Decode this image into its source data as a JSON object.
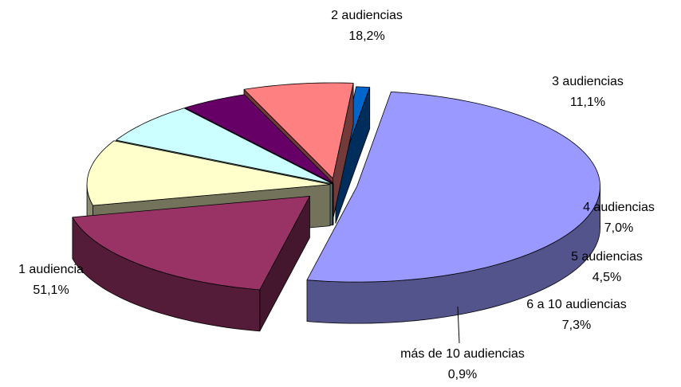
{
  "chart_data": {
    "type": "pie",
    "style": "3d-exploded",
    "title": "",
    "legend": "none",
    "categories": [
      "1 audiencia",
      "2 audiencias",
      "3 audiencias",
      "4 audiencias",
      "5 audiencias",
      "6 a 10 audiencias",
      "más de 10 audiencias"
    ],
    "values": [
      51.1,
      18.2,
      11.1,
      7.0,
      4.5,
      7.3,
      0.9
    ],
    "value_labels": [
      "51,1%",
      "18,2%",
      "11,1%",
      "7,0%",
      "4,5%",
      "7,3%",
      "0,9%"
    ],
    "colors": [
      "#9999FF",
      "#993366",
      "#FFFFCC",
      "#CCFFFF",
      "#660066",
      "#FF8080",
      "#0066CC"
    ]
  }
}
